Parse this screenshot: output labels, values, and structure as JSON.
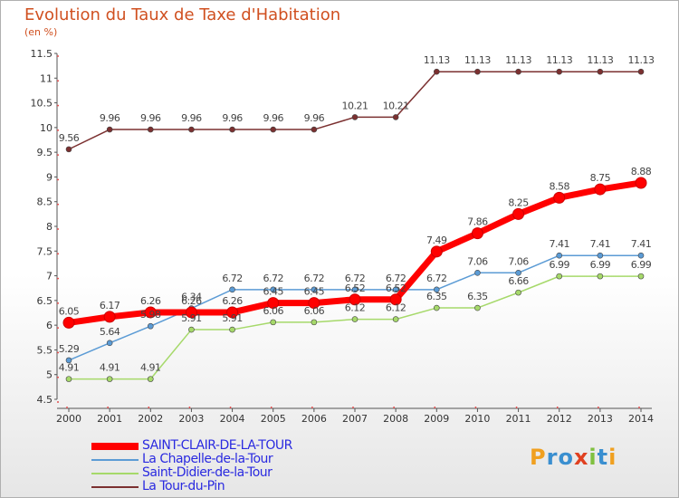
{
  "chart_data": {
    "type": "line",
    "title": "Evolution du Taux de Taxe d'Habitation",
    "ylabel": "(en %)",
    "x": [
      "2000",
      "2001",
      "2002",
      "2003",
      "2004",
      "2005",
      "2006",
      "2007",
      "2008",
      "2009",
      "2010",
      "2011",
      "2012",
      "2013",
      "2014"
    ],
    "ylim": [
      4.5,
      11.5
    ],
    "yticks": [
      "4.5",
      "5",
      "5.5",
      "6",
      "6.5",
      "7",
      "7.5",
      "8",
      "8.5",
      "9",
      "9.5",
      "10",
      "10.5",
      "11",
      "11.5"
    ],
    "grid": false,
    "series": [
      {
        "name": "SAINT-CLAIR-DE-LA-TOUR",
        "color": "#ff0000",
        "values": [
          6.05,
          6.17,
          6.26,
          6.26,
          6.26,
          6.45,
          6.45,
          6.52,
          6.52,
          7.49,
          7.86,
          8.25,
          8.58,
          8.75,
          8.88
        ],
        "labels": [
          "6.05",
          "6.17",
          "6.26",
          "6.26",
          "6.26",
          "6.45",
          "6.45",
          "6.52",
          "6.52",
          "7.49",
          "7.86",
          "8.25",
          "8.58",
          "8.75",
          "8.88"
        ]
      },
      {
        "name": "La Chapelle-de-la-Tour",
        "color": "#5b9bd5",
        "values": [
          5.29,
          5.64,
          5.98,
          6.34,
          6.72,
          6.72,
          6.72,
          6.72,
          6.72,
          6.72,
          7.06,
          7.06,
          7.41,
          7.41,
          7.41
        ],
        "labels": [
          "5.29",
          "5.64",
          "5.98",
          "6.34",
          "6.72",
          "6.72",
          "6.72",
          "6.72",
          "6.72",
          "6.72",
          "7.06",
          "7.06",
          "7.41",
          "7.41",
          "7.41"
        ]
      },
      {
        "name": "Saint-Didier-de-la-Tour",
        "color": "#a6d96a",
        "values": [
          4.91,
          4.91,
          4.91,
          5.91,
          5.91,
          6.06,
          6.06,
          6.12,
          6.12,
          6.35,
          6.35,
          6.66,
          6.99,
          6.99,
          6.99
        ],
        "labels": [
          "4.91",
          "4.91",
          "4.91",
          "5.91",
          "5.91",
          "6.06",
          "6.06",
          "6.12",
          "6.12",
          "6.35",
          "6.35",
          "6.66",
          "6.99",
          "6.99",
          "6.99"
        ]
      },
      {
        "name": "La Tour-du-Pin",
        "color": "#7b3030",
        "values": [
          9.56,
          9.96,
          9.96,
          9.96,
          9.96,
          9.96,
          9.96,
          10.21,
          10.21,
          11.13,
          11.13,
          11.13,
          11.13,
          11.13,
          11.13
        ],
        "labels": [
          "9.56",
          "9.96",
          "9.96",
          "9.96",
          "9.96",
          "9.96",
          "9.96",
          "10.21",
          "10.21",
          "11.13",
          "11.13",
          "11.13",
          "11.13",
          "11.13",
          "11.13"
        ]
      }
    ]
  },
  "logo": {
    "letters": [
      "P",
      "r",
      "o",
      "x",
      "i",
      "t",
      "i"
    ],
    "colors": [
      "#f0a020",
      "#3a8fd0",
      "#3a8fd0",
      "#e04020",
      "#80c040",
      "#3a8fd0",
      "#f0a020"
    ]
  }
}
